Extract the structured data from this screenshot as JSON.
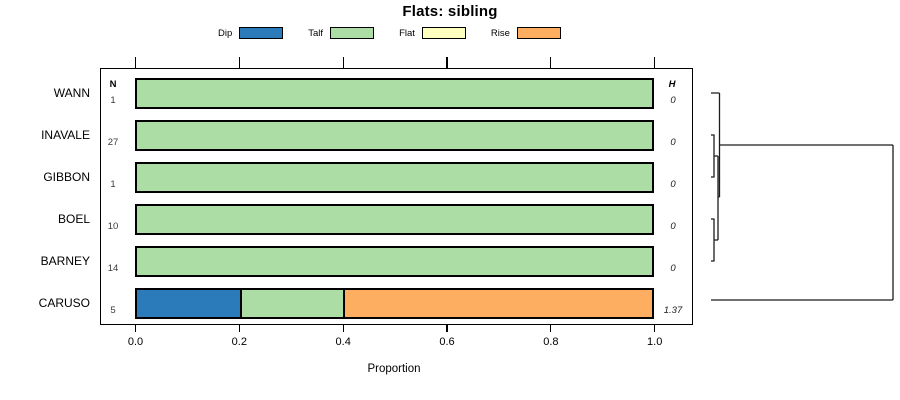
{
  "chart_data": {
    "type": "bar",
    "orientation": "horizontal",
    "stacked": true,
    "title": "Flats: sibling",
    "xlabel": "Proportion",
    "xlim": [
      0.0,
      1.0
    ],
    "x_ticks": [
      "0.0",
      "0.2",
      "0.4",
      "0.6",
      "0.8",
      "1.0"
    ],
    "grid": false,
    "legend_position": "top",
    "legend": [
      {
        "label": "Dip",
        "color": "#2b7bba"
      },
      {
        "label": "Talf",
        "color": "#abdda4"
      },
      {
        "label": "Flat",
        "color": "#ffffbf"
      },
      {
        "label": "Rise",
        "color": "#fdae61"
      }
    ],
    "left_stat_header": "N",
    "right_stat_header": "H",
    "rows": [
      {
        "label": "WANN",
        "n": "1",
        "h": "0",
        "segments": [
          {
            "category": "Talf",
            "value": 1.0
          }
        ]
      },
      {
        "label": "INAVALE",
        "n": "27",
        "h": "0",
        "segments": [
          {
            "category": "Talf",
            "value": 1.0
          }
        ]
      },
      {
        "label": "GIBBON",
        "n": "1",
        "h": "0",
        "segments": [
          {
            "category": "Talf",
            "value": 1.0
          }
        ]
      },
      {
        "label": "BOEL",
        "n": "10",
        "h": "0",
        "segments": [
          {
            "category": "Talf",
            "value": 1.0
          }
        ]
      },
      {
        "label": "BARNEY",
        "n": "14",
        "h": "0",
        "segments": [
          {
            "category": "Talf",
            "value": 1.0
          }
        ]
      },
      {
        "label": "CARUSO",
        "n": "5",
        "h": "1.37",
        "segments": [
          {
            "category": "Dip",
            "value": 0.2
          },
          {
            "category": "Talf",
            "value": 0.2
          },
          {
            "category": "Rise",
            "value": 0.6
          }
        ]
      }
    ],
    "dendrogram": {
      "present": true,
      "side": "right",
      "leaf_order": [
        "WANN",
        "INAVALE",
        "GIBBON",
        "BOEL",
        "BARNEY",
        "CARUSO"
      ],
      "merges": [
        {
          "members": [
            "INAVALE",
            "GIBBON"
          ],
          "relative_height": "near zero"
        },
        {
          "members": [
            "BOEL",
            "BARNEY"
          ],
          "relative_height": "near zero"
        },
        {
          "members": [
            "(INAVALE,GIBBON)",
            "(BOEL,BARNEY)"
          ],
          "relative_height": "near zero"
        },
        {
          "members": [
            "WANN",
            "(INAVALE,GIBBON,BOEL,BARNEY)"
          ],
          "relative_height": "near zero"
        },
        {
          "members": [
            "CARUSO",
            "all others"
          ],
          "relative_height": "maximum"
        }
      ]
    }
  }
}
